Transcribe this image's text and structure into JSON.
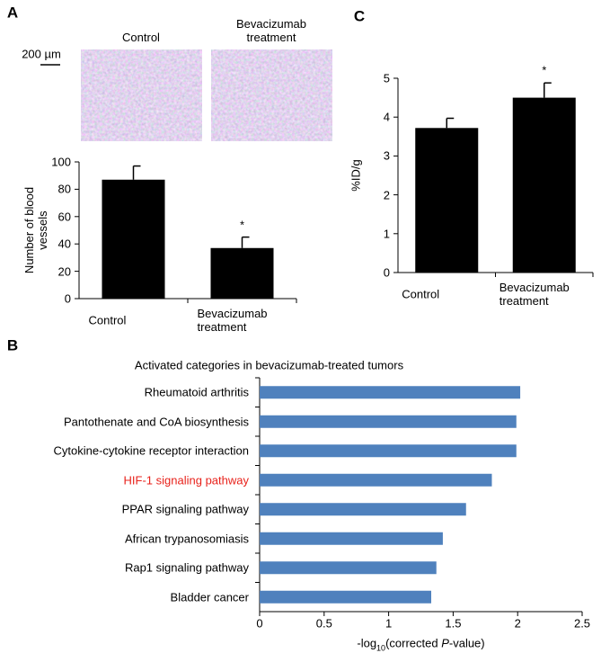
{
  "chart_data": [
    {
      "type": "bar",
      "panel": "A",
      "image_labels": [
        "Control",
        "Bevacizumab treatment"
      ],
      "scale_bar": "200 µm",
      "ylabel": "Number of blood vessels",
      "categories": [
        "Control",
        "Bevacizumab treatment"
      ],
      "values": [
        87,
        37
      ],
      "errors": [
        10,
        8
      ],
      "significance": [
        null,
        "*"
      ],
      "color": "#000000",
      "ylim": [
        0,
        100
      ],
      "yticks": [
        0,
        20,
        40,
        60,
        80,
        100
      ]
    },
    {
      "type": "bar",
      "panel": "C",
      "ylabel": "%ID/g",
      "categories": [
        "Control",
        "Bevacizumab treatment"
      ],
      "values": [
        3.72,
        4.5
      ],
      "errors": [
        0.25,
        0.38
      ],
      "significance": [
        null,
        "*"
      ],
      "color": "#000000",
      "ylim": [
        0,
        5
      ],
      "yticks": [
        0,
        1,
        2,
        3,
        4,
        5
      ]
    },
    {
      "type": "hbar",
      "panel": "B",
      "title": "Activated categories in bevacizumab-treated tumors",
      "xlabel": {
        "prefix": "-log",
        "subscript": "10",
        "middle": "(corrected ",
        "italic": "P",
        "suffix": "-value)"
      },
      "categories": [
        "Rheumatoid arthritis",
        "Pantothenate and CoA biosynthesis",
        "Cytokine-cytokine receptor interaction",
        "HIF-1 signaling pathway",
        "PPAR signaling pathway",
        "African trypanosomiasis",
        "Rap1 signaling pathway",
        "Bladder cancer"
      ],
      "label_colors": [
        "#000000",
        "#000000",
        "#000000",
        "#e8221b",
        "#000000",
        "#000000",
        "#000000",
        "#000000"
      ],
      "values": [
        2.02,
        1.99,
        1.99,
        1.8,
        1.6,
        1.42,
        1.37,
        1.33
      ],
      "color": "#4f81bd",
      "xlim": [
        0,
        2.5
      ],
      "xticks": [
        0,
        0.5,
        1,
        1.5,
        2,
        2.5
      ]
    }
  ]
}
